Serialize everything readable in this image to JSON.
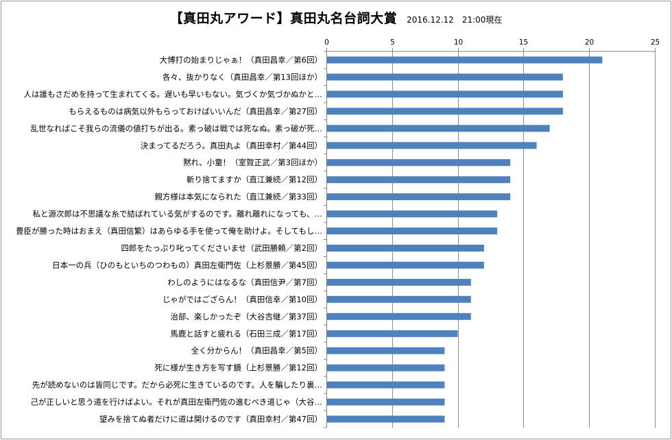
{
  "chart_data": {
    "type": "bar",
    "orientation": "horizontal",
    "title": "【真田丸アワード】真田丸名台詞大賞",
    "subtitle": "2016.12.12　21:00現在",
    "xlim": [
      0,
      25
    ],
    "x_ticks": [
      0,
      5,
      10,
      15,
      20,
      25
    ],
    "x_axis_position": "top",
    "grid": true,
    "bar_color": "#4F81BD",
    "categories": [
      "大博打の始まりじゃぁ！（真田昌幸／第6回）",
      "各々、抜かりなく（真田昌幸／第13回ほか）",
      "人は誰もさだめを持って生まれてくる。遅いも早いもない。気づくか気づかぬかと…",
      "もらえるものは病気以外もらっておけばいいんだ（真田昌幸／第27回）",
      "乱世なればこそ我らの流儀の値打ちが出る。素っ破は戦では死なぬ。素っ破が死…",
      "決まってるだろう。真田丸よ（真田幸村／第44回）",
      "黙れ、小童！（室賀正武／第3回ほか）",
      "斬り捨てますか（直江兼続／第12回）",
      "親方様は本気になられた（直江兼続／第33回）",
      "私と源次郎は不思議な糸で結ばれている気がするのです。離れ離れになっても、…",
      "豊臣が勝った時はおまえ（真田信繁）はあらゆる手を使って俺を助けよ。そしてもし…",
      "四郎をたっぷり叱ってくださいませ（武田勝頼／第2回）",
      "日本一の兵（ひのもといちのつわもの）真田左衛門佐（上杉景勝／第45回）",
      "わしのようにはなるな（真田信尹／第7回）",
      "じゃがではござらん！（真田信幸／第10回）",
      "治部、楽しかったぞ（大谷吉継／第37回）",
      "馬鹿と話すと疲れる（石田三成／第17回）",
      "全く分からん！（真田昌幸／第5回）",
      "死に様が生き方を写す鏡（上杉景勝／第12回）",
      "先が読めないのは皆同じです。だから必死に生きているのです。人を騙したり裏…",
      "己が正しいと思う道を行けばよい。それが真田左衛門佐の進むべき道じゃ（大谷…",
      "望みを捨てぬ者だけに道は開けるのです（真田幸村／第47回）"
    ],
    "values": [
      21,
      18,
      18,
      18,
      17,
      16,
      14,
      14,
      14,
      13,
      13,
      12,
      12,
      11,
      11,
      11,
      10,
      9,
      9,
      9,
      9,
      9
    ]
  }
}
